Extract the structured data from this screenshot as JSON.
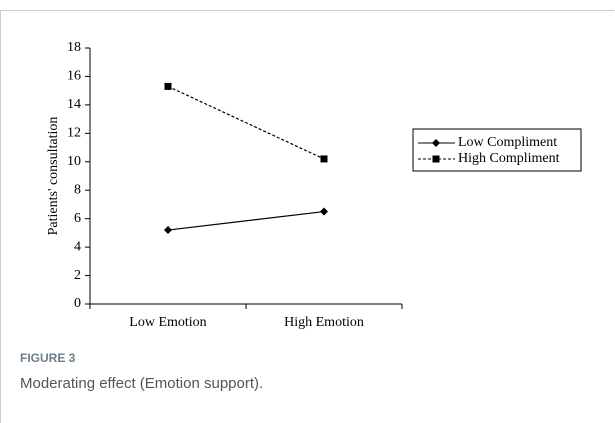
{
  "chart_data": {
    "type": "line",
    "y_label": "Patients' consultation",
    "categories": [
      "Low Emotion",
      "High Emotion"
    ],
    "series": [
      {
        "name": "Low Compliment",
        "color": "#000000",
        "dash": "solid",
        "marker": "diamond",
        "values": [
          5.2,
          6.5
        ]
      },
      {
        "name": "High Compliment",
        "color": "#000000",
        "dash": "dashed",
        "marker": "square",
        "values": [
          15.3,
          10.2
        ]
      }
    ],
    "ylim": [
      0,
      18
    ],
    "yticks": [
      0,
      2,
      4,
      6,
      8,
      10,
      12,
      14,
      16,
      18
    ],
    "grid": false,
    "legend": "right"
  },
  "figure": {
    "label": "FIGURE 3",
    "caption": "Moderating effect (Emotion support)."
  }
}
